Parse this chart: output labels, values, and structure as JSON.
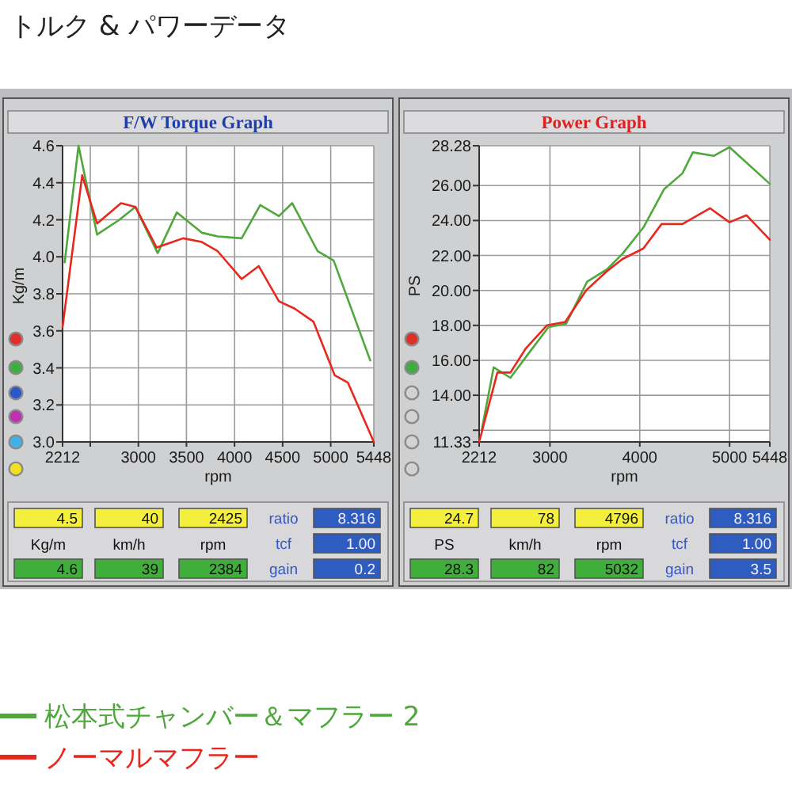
{
  "chart_data": [
    {
      "type": "line",
      "title": "F/W Torque Graph",
      "xlabel": "rpm",
      "ylabel": "Kg/m",
      "xlim": [
        2212,
        5448
      ],
      "ylim": [
        3,
        4.6
      ],
      "xticks": [
        2212,
        {
          "value": 2500,
          "label": null
        },
        3000,
        3500,
        4000,
        4500,
        5000,
        5448
      ],
      "yticks": [
        {
          "value": 3,
          "label": "3.0"
        },
        3.2,
        3.4,
        3.6,
        3.8,
        {
          "value": 4,
          "label": "4.0"
        },
        4.2,
        4.4,
        4.6
      ],
      "grid": true,
      "legend": "bottom",
      "series": [
        {
          "name": "松本式チャンバー＆マフラー 2",
          "color": "#4fa83c",
          "x": [
            2234,
            2378,
            2571,
            2803,
            2969,
            3201,
            3400,
            3660,
            3825,
            4074,
            4267,
            4461,
            4599,
            4864,
            5030,
            5411
          ],
          "values": [
            3.97,
            4.6,
            4.12,
            4.2,
            4.27,
            4.02,
            4.24,
            4.13,
            4.11,
            4.1,
            4.28,
            4.22,
            4.29,
            4.03,
            3.98,
            3.44
          ]
        },
        {
          "name": "ノーマルマフラー",
          "color": "#e8281e",
          "x": [
            2212,
            2416,
            2571,
            2820,
            2969,
            3190,
            3356,
            3466,
            3660,
            3825,
            4074,
            4251,
            4461,
            4626,
            4820,
            5041,
            5179,
            5448
          ],
          "values": [
            3.62,
            4.44,
            4.18,
            4.29,
            4.27,
            4.05,
            4.08,
            4.1,
            4.08,
            4.03,
            3.88,
            3.95,
            3.76,
            3.72,
            3.65,
            3.36,
            3.32,
            3.0
          ]
        }
      ],
      "annotations": [
        "トルク & パワーデータ",
        "4.5",
        "40",
        "2425",
        "Kg/m",
        "km/h",
        "rpm",
        "4.6",
        "39",
        "2384",
        "ratio",
        "8.316",
        "tcf",
        "1.00",
        "gain",
        "0.2"
      ]
    },
    {
      "type": "line",
      "title": "Power Graph",
      "xlabel": "rpm",
      "ylabel": "PS",
      "xlim": [
        2212,
        5448
      ],
      "ylim": [
        11.33,
        28.28
      ],
      "xticks": [
        2212,
        3000,
        4000,
        5000,
        5448
      ],
      "yticks": [
        {
          "value": 11.33,
          "label": "11.33"
        },
        {
          "value": 12,
          "label": null
        },
        {
          "value": 14,
          "label": "14.00"
        },
        {
          "value": 16,
          "label": "16.00"
        },
        {
          "value": 18,
          "label": "18.00"
        },
        {
          "value": 20,
          "label": "20.00"
        },
        {
          "value": 22,
          "label": "22.00"
        },
        {
          "value": 24,
          "label": "24.00"
        },
        {
          "value": 26,
          "label": "26.00"
        },
        {
          "value": 28.28,
          "label": "28.28"
        }
      ],
      "grid": true,
      "series": [
        {
          "color": "#4fa83c",
          "x": [
            2240,
            2374,
            2560,
            2763,
            2984,
            3181,
            3414,
            3634,
            3808,
            4040,
            4272,
            4475,
            4591,
            4823,
            4998,
            5448
          ],
          "values": [
            12.0,
            15.6,
            15.0,
            16.4,
            17.9,
            18.1,
            20.5,
            21.2,
            22.1,
            23.6,
            25.8,
            26.7,
            27.9,
            27.7,
            28.2,
            26.1
          ]
        },
        {
          "color": "#e8281e",
          "x": [
            2212,
            2415,
            2560,
            2734,
            2966,
            3170,
            3402,
            3634,
            3808,
            4040,
            4243,
            4475,
            4783,
            4998,
            5189,
            5448
          ],
          "values": [
            11.33,
            15.3,
            15.3,
            16.7,
            18.0,
            18.2,
            20.0,
            21.1,
            21.8,
            22.4,
            23.8,
            23.8,
            24.7,
            23.9,
            24.3,
            22.9
          ]
        }
      ],
      "annotations": [
        "24.7",
        "78",
        "4796",
        "PS",
        "km/h",
        "rpm",
        "28.3",
        "82",
        "5032",
        "ratio",
        "8.316",
        "tcf",
        "1.00",
        "gain",
        "3.5"
      ]
    }
  ]
}
